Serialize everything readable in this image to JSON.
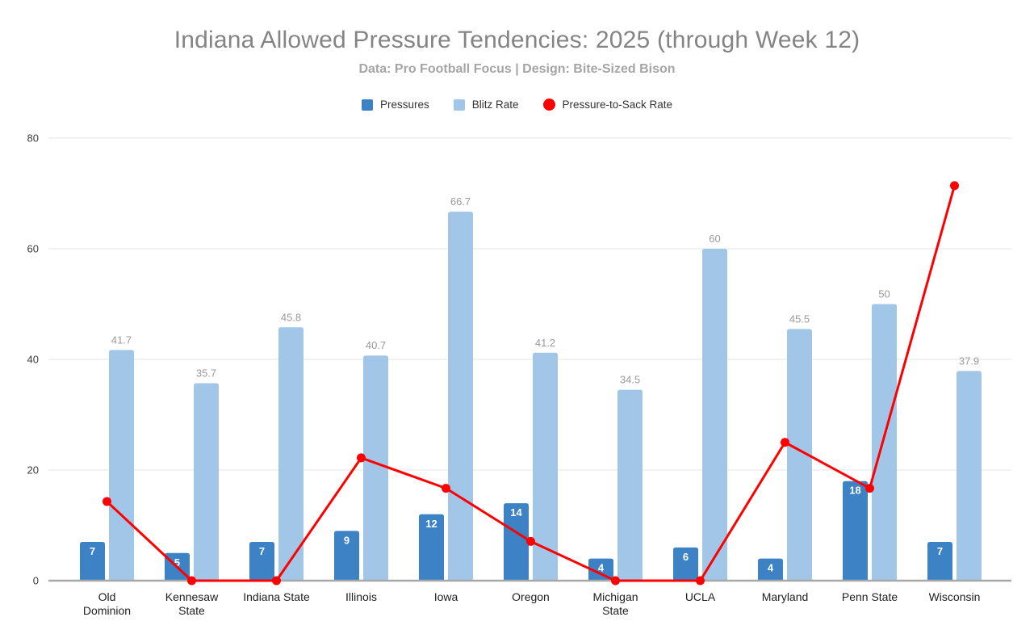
{
  "chart_data": {
    "type": "bar+line combo",
    "title": "Indiana Allowed Pressure Tendencies: 2025 (through Week 12)",
    "subtitle": "Data: Pro Football Focus | Design: Bite-Sized Bison",
    "categories": [
      "Old Dominion",
      "Kennesaw State",
      "Indiana State",
      "Illinois",
      "Iowa",
      "Oregon",
      "Michigan State",
      "UCLA",
      "Maryland",
      "Penn State",
      "Wisconsin"
    ],
    "category_label_lines": [
      [
        "Old",
        "Dominion"
      ],
      [
        "Kennesaw",
        "State"
      ],
      [
        "Indiana State"
      ],
      [
        "Illinois"
      ],
      [
        "Iowa"
      ],
      [
        "Oregon"
      ],
      [
        "Michigan",
        "State"
      ],
      [
        "UCLA"
      ],
      [
        "Maryland"
      ],
      [
        "Penn State"
      ],
      [
        "Wisconsin"
      ]
    ],
    "series": [
      {
        "name": "Pressures",
        "type": "bar",
        "color": "#3d82c4",
        "values": [
          7,
          5,
          7,
          9,
          12,
          14,
          4,
          6,
          4,
          18,
          7
        ],
        "label_style": "white-inside"
      },
      {
        "name": "Blitz Rate",
        "type": "bar",
        "color": "#a2c6e8",
        "values": [
          41.7,
          35.7,
          45.8,
          40.7,
          66.7,
          41.2,
          34.5,
          60,
          45.5,
          50,
          37.9
        ],
        "label_style": "gray-above"
      },
      {
        "name": "Pressure-to-Sack Rate",
        "type": "line",
        "color": "#ff0000",
        "values": [
          14.3,
          0,
          0,
          22.2,
          16.7,
          7.1,
          0,
          0,
          25,
          16.7,
          71.4
        ],
        "label_style": "none"
      }
    ],
    "y_axis": {
      "min": 0,
      "max": 80,
      "ticks": [
        0,
        20,
        40,
        60,
        80
      ]
    },
    "xlabel": "",
    "ylabel": "",
    "legend_position": "top",
    "grid": true,
    "colors": {
      "grid": "#e4e4e4",
      "axis_line": "#a8a8a8",
      "tick_label": "#3c3c3c",
      "category_label": "#1f1f1f",
      "bar_value_label_gray": "#9a9a9a",
      "bar_value_label_white": "#ffffff",
      "title": "#848484",
      "subtitle": "#a5a5a5",
      "legend_text": "#333333",
      "background": "#ffffff"
    }
  }
}
